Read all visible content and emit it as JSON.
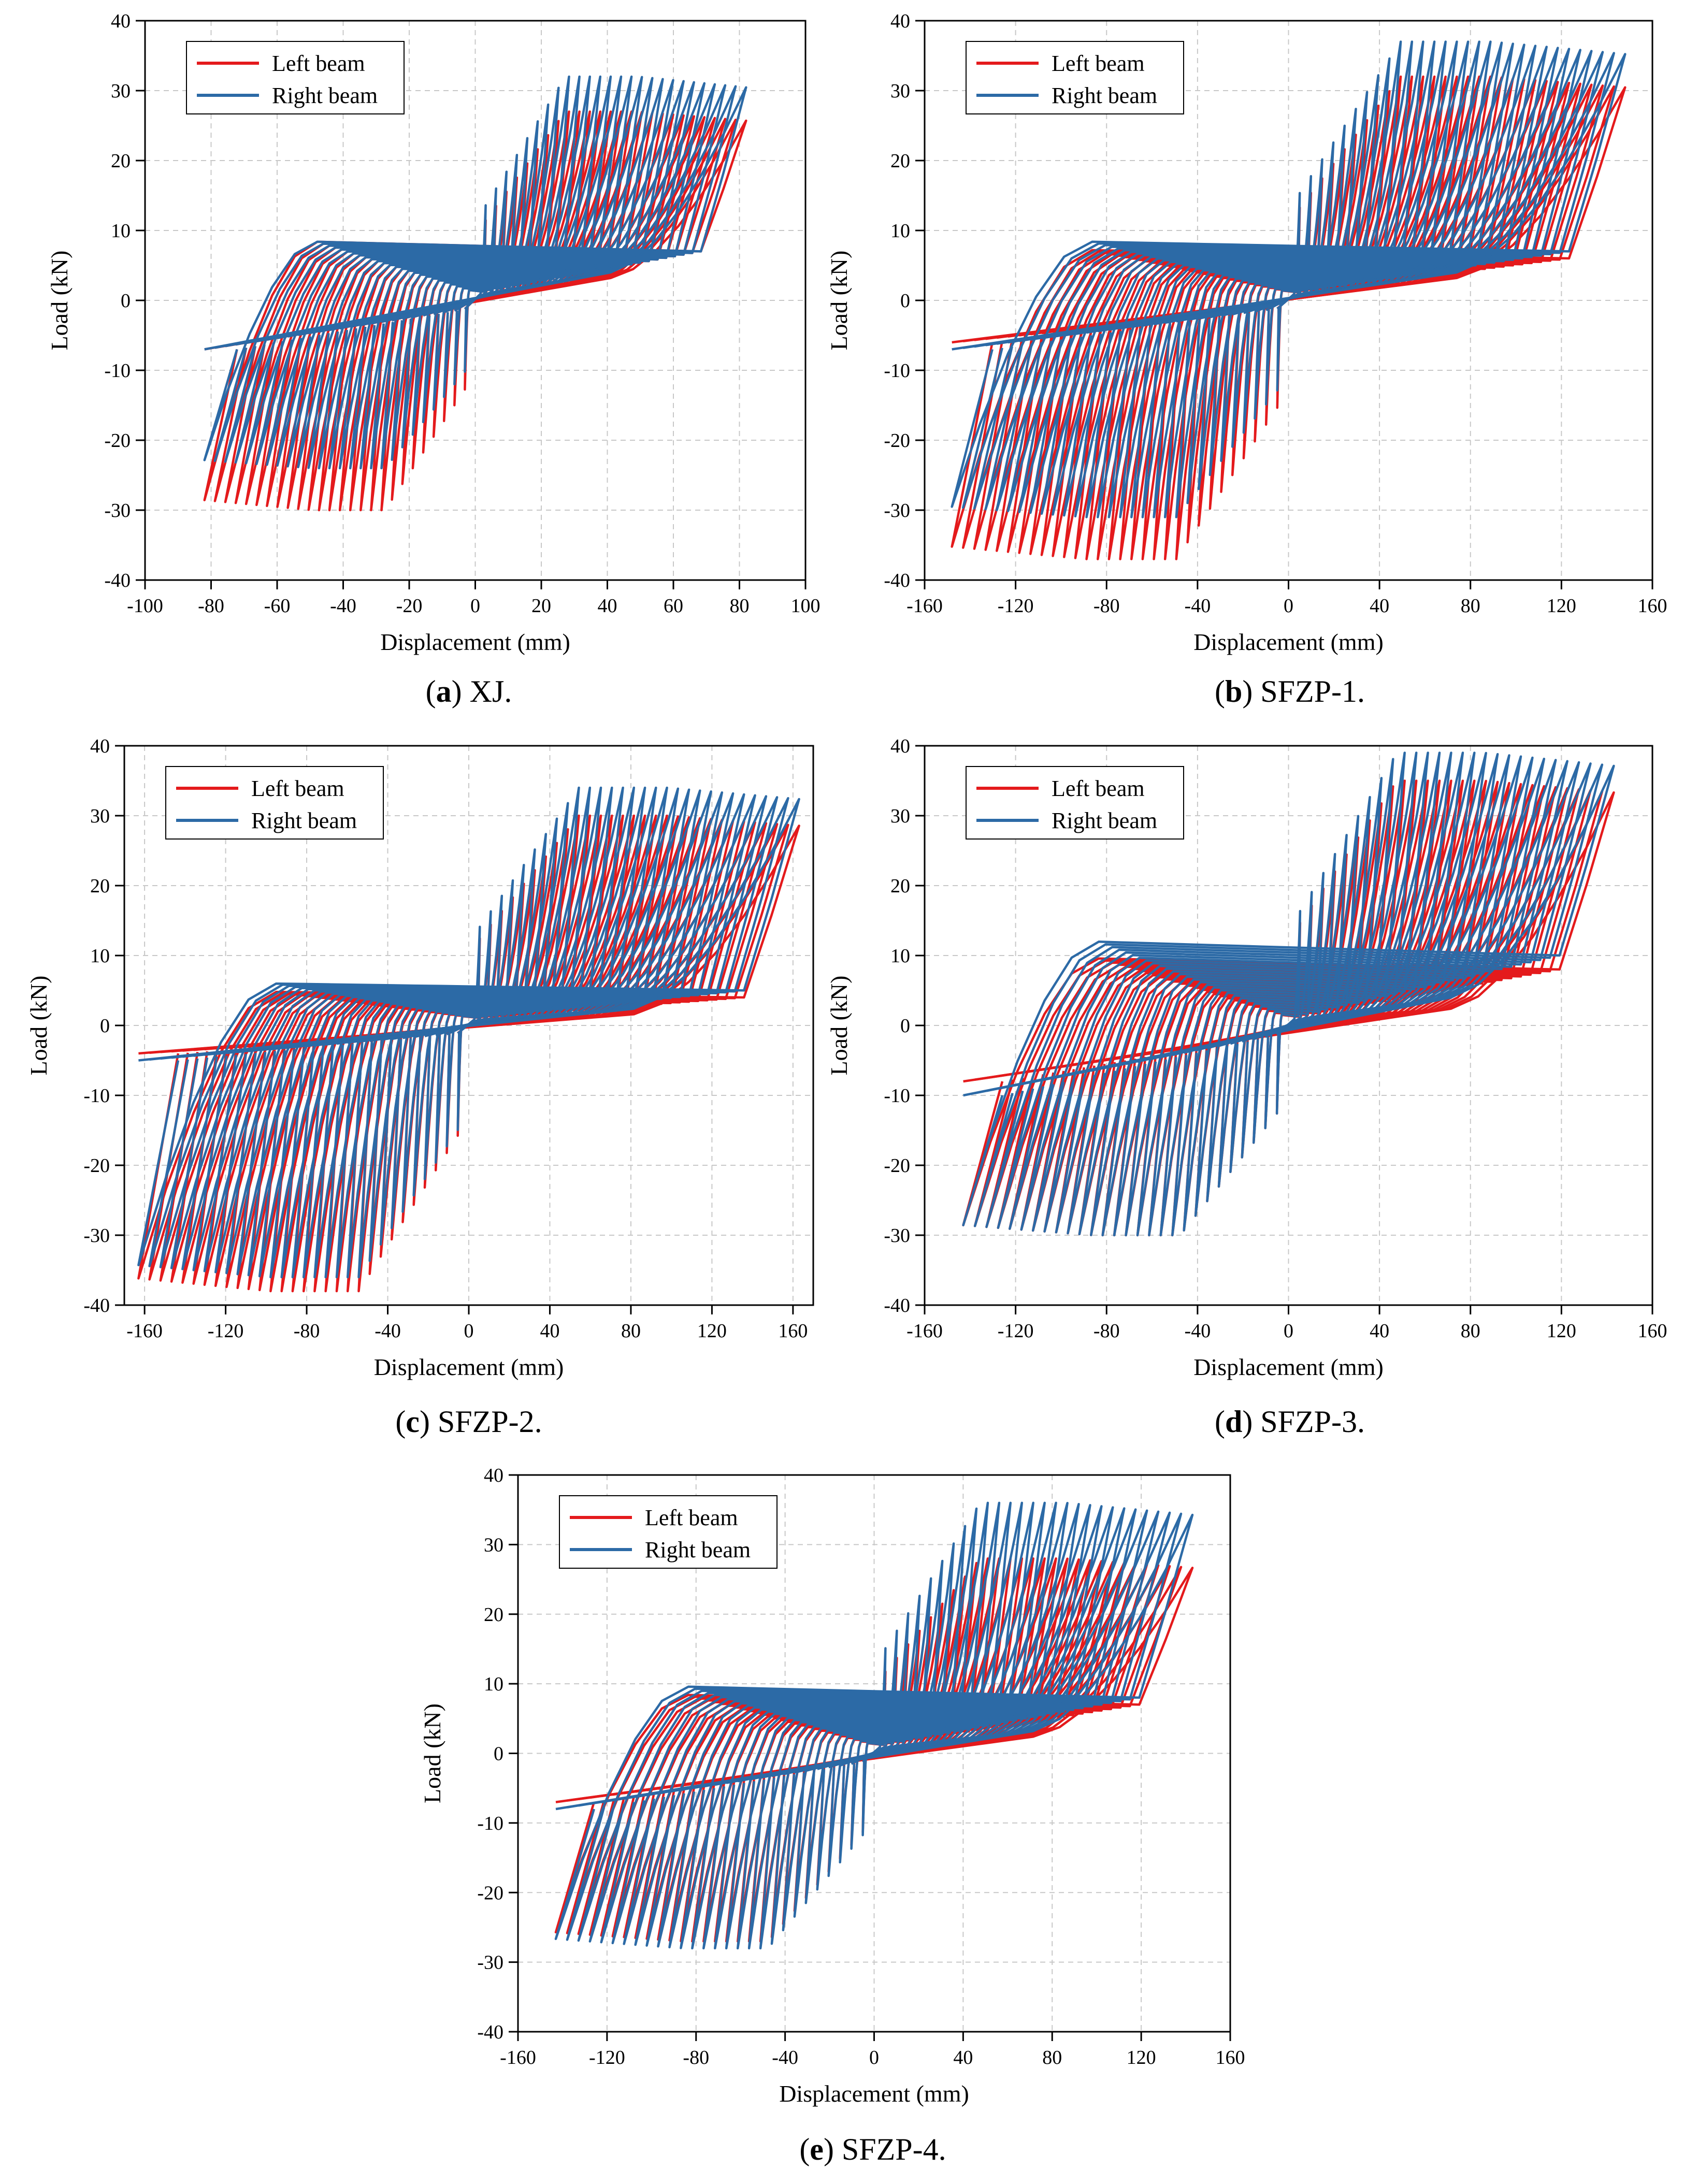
{
  "figure": {
    "legend_labels": [
      "Left beam",
      "Right beam"
    ],
    "colors": {
      "left": "#e41a1c",
      "right": "#2c6aa6"
    }
  },
  "chart_data": [
    {
      "id": "a",
      "type": "line",
      "caption": {
        "letter": "a",
        "text": "XJ."
      },
      "xlabel": "Displacement (mm)",
      "ylabel": "Load (kN)",
      "xlim": [
        -100,
        100
      ],
      "ylim": [
        -40,
        40
      ],
      "xticks": [
        -100,
        -80,
        -60,
        -40,
        -20,
        0,
        20,
        40,
        60,
        80,
        100
      ],
      "yticks": [
        -40,
        -30,
        -20,
        -10,
        0,
        10,
        20,
        30,
        40
      ],
      "grid": true,
      "legend": "top-left",
      "series": [
        {
          "name": "Left beam",
          "color": "#e41a1c",
          "max_disp": [
            82,
            -82
          ],
          "cycles": 26,
          "pos_peak": 27,
          "neg_peak": -30,
          "pos_floor": 3,
          "neg_ceiling": 6
        },
        {
          "name": "Right beam",
          "color": "#2c6aa6",
          "max_disp": [
            82,
            -82
          ],
          "cycles": 26,
          "pos_peak": 32,
          "neg_peak": -24,
          "pos_floor": 4,
          "neg_ceiling": 6
        }
      ]
    },
    {
      "id": "b",
      "type": "line",
      "caption": {
        "letter": "b",
        "text": "SFZP-1."
      },
      "xlabel": "Displacement (mm)",
      "ylabel": "Load (kN)",
      "xlim": [
        -160,
        160
      ],
      "ylim": [
        -40,
        40
      ],
      "xticks": [
        -160,
        -120,
        -80,
        -40,
        0,
        40,
        80,
        120,
        160
      ],
      "yticks": [
        -40,
        -30,
        -20,
        -10,
        0,
        10,
        20,
        30,
        40
      ],
      "grid": true,
      "legend": "top-left",
      "series": [
        {
          "name": "Left beam",
          "color": "#e41a1c",
          "max_disp": [
            148,
            -148
          ],
          "cycles": 30,
          "pos_peak": 32,
          "neg_peak": -37,
          "pos_floor": 3,
          "neg_ceiling": 5
        },
        {
          "name": "Right beam",
          "color": "#2c6aa6",
          "max_disp": [
            148,
            -148
          ],
          "cycles": 30,
          "pos_peak": 37,
          "neg_peak": -31,
          "pos_floor": 4,
          "neg_ceiling": 6
        }
      ]
    },
    {
      "id": "c",
      "type": "line",
      "caption": {
        "letter": "c",
        "text": "SFZP-2."
      },
      "xlabel": "Displacement (mm)",
      "ylabel": "Load (kN)",
      "xlim": [
        -170,
        170
      ],
      "ylim": [
        -40,
        40
      ],
      "xticks": [
        -160,
        -120,
        -80,
        -40,
        0,
        40,
        80,
        120,
        160
      ],
      "yticks": [
        -40,
        -30,
        -20,
        -10,
        0,
        10,
        20,
        30,
        40
      ],
      "grid": true,
      "legend": "top-left",
      "series": [
        {
          "name": "Left beam",
          "color": "#e41a1c",
          "max_disp": [
            163,
            -163
          ],
          "cycles": 30,
          "pos_peak": 30,
          "neg_peak": -38,
          "pos_floor": 1,
          "neg_ceiling": 3
        },
        {
          "name": "Right beam",
          "color": "#2c6aa6",
          "max_disp": [
            163,
            -163
          ],
          "cycles": 30,
          "pos_peak": 34,
          "neg_peak": -36,
          "pos_floor": 2,
          "neg_ceiling": 4
        }
      ]
    },
    {
      "id": "d",
      "type": "line",
      "caption": {
        "letter": "d",
        "text": "SFZP-3."
      },
      "xlabel": "Displacement (mm)",
      "ylabel": "Load (kN)",
      "xlim": [
        -160,
        160
      ],
      "ylim": [
        -40,
        40
      ],
      "xticks": [
        -160,
        -120,
        -80,
        -40,
        0,
        40,
        80,
        120,
        160
      ],
      "yticks": [
        -40,
        -30,
        -20,
        -10,
        0,
        10,
        20,
        30,
        40
      ],
      "grid": true,
      "legend": "top-left",
      "series": [
        {
          "name": "Left beam",
          "color": "#e41a1c",
          "max_disp": [
            143,
            -143
          ],
          "cycles": 28,
          "pos_peak": 35,
          "neg_peak": -30,
          "pos_floor": 2,
          "neg_ceiling": 7
        },
        {
          "name": "Right beam",
          "color": "#2c6aa6",
          "max_disp": [
            143,
            -143
          ],
          "cycles": 28,
          "pos_peak": 39,
          "neg_peak": -30,
          "pos_floor": 4,
          "neg_ceiling": 9
        }
      ]
    },
    {
      "id": "e",
      "type": "line",
      "caption": {
        "letter": "e",
        "text": "SFZP-4."
      },
      "xlabel": "Displacement (mm)",
      "ylabel": "Load (kN)",
      "xlim": [
        -160,
        160
      ],
      "ylim": [
        -40,
        40
      ],
      "xticks": [
        -160,
        -120,
        -80,
        -40,
        0,
        40,
        80,
        120,
        160
      ],
      "yticks": [
        -40,
        -30,
        -20,
        -10,
        0,
        10,
        20,
        30,
        40
      ],
      "grid": true,
      "legend": "top-left",
      "series": [
        {
          "name": "Left beam",
          "color": "#e41a1c",
          "max_disp": [
            143,
            -143
          ],
          "cycles": 28,
          "pos_peak": 28,
          "neg_peak": -27,
          "pos_floor": 2,
          "neg_ceiling": 6
        },
        {
          "name": "Right beam",
          "color": "#2c6aa6",
          "max_disp": [
            143,
            -143
          ],
          "cycles": 28,
          "pos_peak": 36,
          "neg_peak": -28,
          "pos_floor": 3,
          "neg_ceiling": 7
        }
      ]
    }
  ]
}
